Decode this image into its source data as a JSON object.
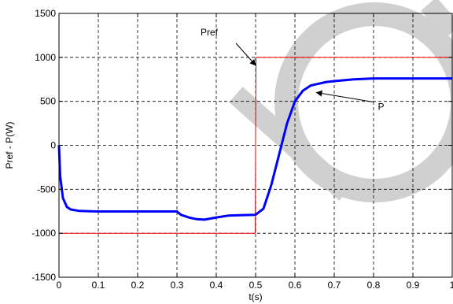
{
  "chart_data": {
    "type": "line",
    "xlabel": "t(s)",
    "ylabel": "Pref - P(W)",
    "xlim": [
      0,
      1
    ],
    "ylim": [
      -1500,
      1500
    ],
    "xticks": [
      0,
      0.1,
      0.2,
      0.3,
      0.4,
      0.5,
      0.6,
      0.7,
      0.8,
      0.9,
      1
    ],
    "xtick_labels": [
      "0",
      "0.1",
      "0.2",
      "0.3",
      "0.4",
      "0.5",
      "0.6",
      "0.7",
      "0.8",
      "0.9",
      "1"
    ],
    "yticks": [
      -1500,
      -1000,
      -500,
      0,
      500,
      1000,
      1500
    ],
    "ytick_labels": [
      "-1500",
      "-1000",
      "-500",
      "0",
      "500",
      "1000",
      "1500"
    ],
    "grid": true,
    "series": [
      {
        "name": "Pref",
        "color": "#ff0000",
        "x": [
          0,
          0.499,
          0.5,
          0.501,
          1
        ],
        "y": [
          -1000,
          -1000,
          0,
          1000,
          1000
        ]
      },
      {
        "name": "P",
        "color": "#0000ff",
        "x": [
          0,
          0.003,
          0.01,
          0.02,
          0.03,
          0.05,
          0.08,
          0.1,
          0.15,
          0.2,
          0.25,
          0.3,
          0.31,
          0.33,
          0.35,
          0.37,
          0.4,
          0.43,
          0.46,
          0.5,
          0.52,
          0.54,
          0.56,
          0.58,
          0.6,
          0.62,
          0.64,
          0.66,
          0.68,
          0.7,
          0.75,
          0.8,
          0.85,
          0.9,
          0.95,
          1
        ],
        "y": [
          0,
          -350,
          -600,
          -700,
          -730,
          -745,
          -750,
          -752,
          -752,
          -752,
          -752,
          -752,
          -790,
          -820,
          -840,
          -845,
          -820,
          -800,
          -795,
          -790,
          -720,
          -450,
          -100,
          250,
          500,
          620,
          680,
          700,
          720,
          730,
          750,
          760,
          760,
          760,
          760,
          760
        ]
      }
    ],
    "annotations": [
      {
        "text": "Pref",
        "target_x": 0.5,
        "target_y": 910
      },
      {
        "text": "P",
        "target_x": 0.655,
        "target_y": 600
      }
    ],
    "watermark": {
      "color": "#d0d0d0"
    }
  }
}
